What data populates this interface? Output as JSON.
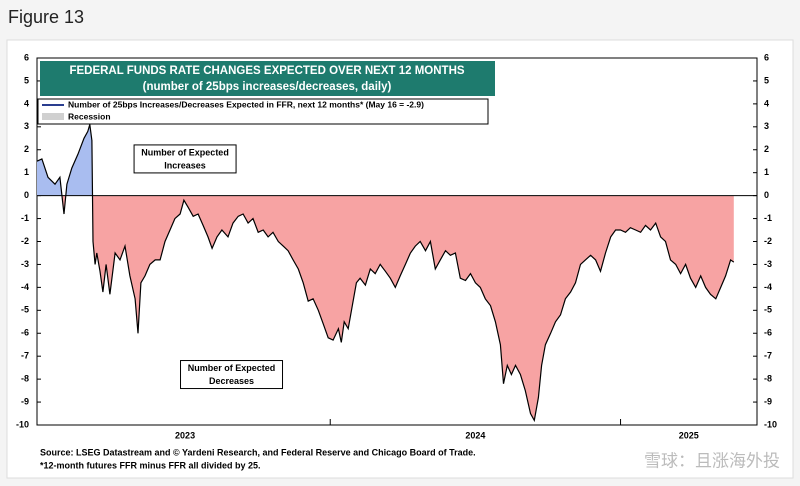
{
  "page_title": "Figure 13",
  "chart_data": {
    "type": "line",
    "title": "FEDERAL FUNDS RATE CHANGES EXPECTED OVER NEXT 12 MONTHS",
    "subtitle": "(number of 25bps increases/decreases, daily)",
    "x": [
      2022.99,
      2023.007,
      2023.028,
      2023.052,
      2023.069,
      2023.083,
      2023.093,
      2023.11,
      2023.131,
      2023.152,
      2023.165,
      2023.172,
      2023.179,
      2023.183,
      2023.19,
      2023.196,
      2023.207,
      2023.217,
      2023.228,
      2023.241,
      2023.259,
      2023.276,
      2023.293,
      2023.31,
      2023.328,
      2023.338,
      2023.348,
      2023.362,
      2023.379,
      2023.397,
      2023.414,
      2023.431,
      2023.448,
      2023.465,
      2023.483,
      2023.496,
      2023.51,
      2023.528,
      2023.545,
      2023.562,
      2023.579,
      2023.593,
      2023.61,
      2023.627,
      2023.648,
      2023.665,
      2023.683,
      2023.7,
      2023.717,
      2023.734,
      2023.752,
      2023.769,
      2023.786,
      2023.803,
      2023.821,
      2023.838,
      2023.855,
      2023.872,
      2023.89,
      2023.907,
      2023.924,
      2023.941,
      2023.959,
      2023.976,
      2023.993,
      2024.01,
      2024.028,
      2024.038,
      2024.048,
      2024.062,
      2024.076,
      2024.09,
      2024.103,
      2024.121,
      2024.138,
      2024.155,
      2024.172,
      2024.19,
      2024.207,
      2024.224,
      2024.241,
      2024.259,
      2024.276,
      2024.293,
      2024.31,
      2024.328,
      2024.345,
      2024.362,
      2024.379,
      2024.397,
      2024.414,
      2024.431,
      2024.448,
      2024.466,
      2024.483,
      2024.5,
      2024.517,
      2024.534,
      2024.552,
      2024.569,
      2024.586,
      2024.597,
      2024.61,
      2024.624,
      2024.638,
      2024.655,
      2024.672,
      2024.69,
      2024.703,
      2024.717,
      2024.728,
      2024.741,
      2024.759,
      2024.776,
      2024.793,
      2024.81,
      2024.828,
      2024.845,
      2024.862,
      2024.879,
      2024.897,
      2024.914,
      2024.931,
      2024.948,
      2024.966,
      2024.983,
      2025.0,
      2025.017,
      2025.034,
      2025.052,
      2025.069,
      2025.086,
      2025.103,
      2025.121,
      2025.138,
      2025.155,
      2025.172,
      2025.19,
      2025.207,
      2025.224,
      2025.241,
      2025.259,
      2025.276,
      2025.293,
      2025.31,
      2025.328,
      2025.345,
      2025.362,
      2025.379,
      2025.39
    ],
    "series": [
      {
        "name": "Number of 25bps Increases/Decreases Expected in FFR, next 12 months* (May 16 = -2.9)",
        "color": "#000000",
        "values": [
          1.5,
          1.6,
          0.8,
          0.5,
          0.8,
          -0.8,
          0.5,
          1.2,
          1.8,
          2.5,
          2.8,
          3.1,
          2.4,
          -2,
          -3,
          -2.5,
          -3.3,
          -4.2,
          -3,
          -4.3,
          -2.5,
          -2.8,
          -2.2,
          -3.5,
          -4.5,
          -6,
          -3.8,
          -3.5,
          -3,
          -2.8,
          -2.8,
          -2,
          -1.5,
          -1,
          -0.8,
          -0.2,
          -0.5,
          -0.9,
          -0.8,
          -1.3,
          -1.8,
          -2.3,
          -1.8,
          -1.5,
          -1.8,
          -1.2,
          -0.9,
          -0.8,
          -1.2,
          -1,
          -1.6,
          -1.5,
          -1.8,
          -1.6,
          -2,
          -2.2,
          -2.4,
          -2.8,
          -3.2,
          -3.8,
          -4.6,
          -4.5,
          -5,
          -5.6,
          -6.2,
          -6.3,
          -5.8,
          -6.4,
          -5.5,
          -5.8,
          -4.8,
          -3.8,
          -3.6,
          -3.9,
          -3.2,
          -3.4,
          -3,
          -3.3,
          -3.6,
          -4,
          -3.5,
          -3,
          -2.5,
          -2.2,
          -2,
          -2.4,
          -2,
          -3.2,
          -2.8,
          -2.4,
          -2.6,
          -2.5,
          -3.6,
          -3.7,
          -3.4,
          -3.8,
          -4,
          -4.5,
          -4.8,
          -5.5,
          -6.5,
          -8.2,
          -7.4,
          -7.8,
          -7.4,
          -7.8,
          -8.5,
          -9.5,
          -9.8,
          -8.8,
          -7.4,
          -6.5,
          -6,
          -5.5,
          -5.2,
          -4.5,
          -4.2,
          -3.8,
          -3,
          -2.8,
          -2.6,
          -2.8,
          -3.3,
          -2.5,
          -1.8,
          -1.5,
          -1.5,
          -1.6,
          -1.4,
          -1.5,
          -1.6,
          -1.3,
          -1.5,
          -1.2,
          -1.8,
          -2,
          -2.8,
          -3,
          -3.4,
          -3,
          -3.6,
          -4,
          -3.5,
          -4,
          -4.3,
          -4.5,
          -4,
          -3.5,
          -2.8,
          -2.9
        ]
      }
    ],
    "positive_color": "#a9bdf0",
    "negative_color": "#f7a3a3",
    "recession": {
      "name": "Recession",
      "color": "#d0d0d0"
    },
    "xlim": [
      2022.99,
      2025.47
    ],
    "xticks": [
      {
        "value": 2023.5,
        "label": "2023"
      },
      {
        "value": 2024.5,
        "label": "2024"
      },
      {
        "value": 2025.235,
        "label": "2025"
      }
    ],
    "xminor": [
      2024,
      2025
    ],
    "ylim": [
      -10,
      6
    ],
    "yticks": [
      -10,
      -9,
      -8,
      -7,
      -6,
      -5,
      -4,
      -3,
      -2,
      -1,
      0,
      1,
      2,
      3,
      4,
      5,
      6
    ],
    "annotations": [
      {
        "lines": [
          "Number of Expected",
          "Increases"
        ],
        "x": 2023.5,
        "y": 1.6
      },
      {
        "lines": [
          "Number of Expected",
          "Decreases"
        ],
        "x": 2023.66,
        "y": -7.8
      }
    ],
    "notes": [
      "Source: LSEG Datastream and © Yardeni Research, and Federal Reserve and Chicago Board of Trade.",
      "*12-month futures FFR minus FFR all divided by 25."
    ],
    "watermark": "雪球：且涨海外投"
  }
}
